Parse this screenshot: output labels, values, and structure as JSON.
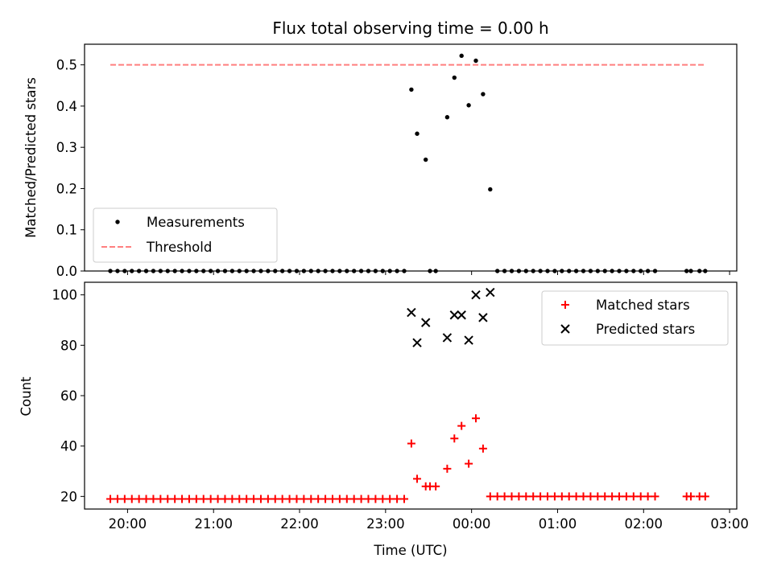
{
  "figure": {
    "title": "Flux total observing time = 0.00 h",
    "xlabel": "Time (UTC)",
    "x_tick_labels": [
      "20:00",
      "21:00",
      "22:00",
      "23:00",
      "00:00",
      "01:00",
      "02:00",
      "03:00"
    ]
  },
  "chart_data": [
    {
      "type": "scatter",
      "panel": "top",
      "ylabel": "Matched/Predicted stars",
      "xlim": [
        "19:30",
        "03:05"
      ],
      "ylim": [
        0,
        0.55
      ],
      "y_ticks": [
        0.0,
        0.1,
        0.2,
        0.3,
        0.4,
        0.5
      ],
      "y_tick_labels": [
        "0.0",
        "0.1",
        "0.2",
        "0.3",
        "0.4",
        "0.5"
      ],
      "grid": false,
      "legend_position": "lower left",
      "series": [
        {
          "name": "Measurements",
          "kind": "scatter",
          "marker": "dot",
          "color": "#000000",
          "points": [
            {
              "x": "19:48",
              "y": 0
            },
            {
              "x": "19:53",
              "y": 0
            },
            {
              "x": "19:58",
              "y": 0
            },
            {
              "x": "20:03",
              "y": 0
            },
            {
              "x": "20:08",
              "y": 0
            },
            {
              "x": "20:13",
              "y": 0
            },
            {
              "x": "20:18",
              "y": 0
            },
            {
              "x": "20:23",
              "y": 0
            },
            {
              "x": "20:28",
              "y": 0
            },
            {
              "x": "20:33",
              "y": 0
            },
            {
              "x": "20:38",
              "y": 0
            },
            {
              "x": "20:43",
              "y": 0
            },
            {
              "x": "20:48",
              "y": 0
            },
            {
              "x": "20:53",
              "y": 0
            },
            {
              "x": "20:58",
              "y": 0
            },
            {
              "x": "21:03",
              "y": 0
            },
            {
              "x": "21:08",
              "y": 0
            },
            {
              "x": "21:13",
              "y": 0
            },
            {
              "x": "21:18",
              "y": 0
            },
            {
              "x": "21:23",
              "y": 0
            },
            {
              "x": "21:28",
              "y": 0
            },
            {
              "x": "21:33",
              "y": 0
            },
            {
              "x": "21:38",
              "y": 0
            },
            {
              "x": "21:43",
              "y": 0
            },
            {
              "x": "21:48",
              "y": 0
            },
            {
              "x": "21:53",
              "y": 0
            },
            {
              "x": "21:58",
              "y": 0
            },
            {
              "x": "22:03",
              "y": 0
            },
            {
              "x": "22:08",
              "y": 0
            },
            {
              "x": "22:13",
              "y": 0
            },
            {
              "x": "22:18",
              "y": 0
            },
            {
              "x": "22:23",
              "y": 0
            },
            {
              "x": "22:28",
              "y": 0
            },
            {
              "x": "22:33",
              "y": 0
            },
            {
              "x": "22:38",
              "y": 0
            },
            {
              "x": "22:43",
              "y": 0
            },
            {
              "x": "22:48",
              "y": 0
            },
            {
              "x": "22:53",
              "y": 0
            },
            {
              "x": "22:58",
              "y": 0
            },
            {
              "x": "23:03",
              "y": 0
            },
            {
              "x": "23:08",
              "y": 0
            },
            {
              "x": "23:13",
              "y": 0
            },
            {
              "x": "23:18",
              "y": 0.44
            },
            {
              "x": "23:22",
              "y": 0.333
            },
            {
              "x": "23:28",
              "y": 0.27
            },
            {
              "x": "23:31",
              "y": 0
            },
            {
              "x": "23:35",
              "y": 0
            },
            {
              "x": "23:43",
              "y": 0.373
            },
            {
              "x": "23:48",
              "y": 0.469
            },
            {
              "x": "23:53",
              "y": 0.522
            },
            {
              "x": "23:58",
              "y": 0.402
            },
            {
              "x": "00:03",
              "y": 0.51
            },
            {
              "x": "00:08",
              "y": 0.429
            },
            {
              "x": "00:13",
              "y": 0.198
            },
            {
              "x": "00:18",
              "y": 0
            },
            {
              "x": "00:23",
              "y": 0
            },
            {
              "x": "00:28",
              "y": 0
            },
            {
              "x": "00:33",
              "y": 0
            },
            {
              "x": "00:38",
              "y": 0
            },
            {
              "x": "00:43",
              "y": 0
            },
            {
              "x": "00:48",
              "y": 0
            },
            {
              "x": "00:53",
              "y": 0
            },
            {
              "x": "00:58",
              "y": 0
            },
            {
              "x": "01:03",
              "y": 0
            },
            {
              "x": "01:08",
              "y": 0
            },
            {
              "x": "01:13",
              "y": 0
            },
            {
              "x": "01:18",
              "y": 0
            },
            {
              "x": "01:23",
              "y": 0
            },
            {
              "x": "01:28",
              "y": 0
            },
            {
              "x": "01:33",
              "y": 0
            },
            {
              "x": "01:38",
              "y": 0
            },
            {
              "x": "01:43",
              "y": 0
            },
            {
              "x": "01:48",
              "y": 0
            },
            {
              "x": "01:53",
              "y": 0
            },
            {
              "x": "01:58",
              "y": 0
            },
            {
              "x": "02:03",
              "y": 0
            },
            {
              "x": "02:08",
              "y": 0
            },
            {
              "x": "02:30",
              "y": 0
            },
            {
              "x": "02:33",
              "y": 0
            },
            {
              "x": "02:39",
              "y": 0
            },
            {
              "x": "02:43",
              "y": 0
            }
          ]
        },
        {
          "name": "Threshold",
          "kind": "line",
          "style": "dashed",
          "color": "#ff7f7f",
          "points": [
            {
              "x": "19:48",
              "y": 0.5
            },
            {
              "x": "02:43",
              "y": 0.5
            }
          ]
        }
      ]
    },
    {
      "type": "scatter",
      "panel": "bottom",
      "ylabel": "Count",
      "xlim": [
        "19:30",
        "03:05"
      ],
      "ylim": [
        15,
        105
      ],
      "y_ticks": [
        20,
        40,
        60,
        80,
        100
      ],
      "y_tick_labels": [
        "20",
        "40",
        "60",
        "80",
        "100"
      ],
      "grid": false,
      "legend_position": "upper right",
      "series": [
        {
          "name": "Matched stars",
          "kind": "scatter",
          "marker": "plus",
          "color": "#ff0000",
          "points": [
            {
              "x": "19:48",
              "y": 19
            },
            {
              "x": "19:53",
              "y": 19
            },
            {
              "x": "19:58",
              "y": 19
            },
            {
              "x": "20:03",
              "y": 19
            },
            {
              "x": "20:08",
              "y": 19
            },
            {
              "x": "20:13",
              "y": 19
            },
            {
              "x": "20:18",
              "y": 19
            },
            {
              "x": "20:23",
              "y": 19
            },
            {
              "x": "20:28",
              "y": 19
            },
            {
              "x": "20:33",
              "y": 19
            },
            {
              "x": "20:38",
              "y": 19
            },
            {
              "x": "20:43",
              "y": 19
            },
            {
              "x": "20:48",
              "y": 19
            },
            {
              "x": "20:53",
              "y": 19
            },
            {
              "x": "20:58",
              "y": 19
            },
            {
              "x": "21:03",
              "y": 19
            },
            {
              "x": "21:08",
              "y": 19
            },
            {
              "x": "21:13",
              "y": 19
            },
            {
              "x": "21:18",
              "y": 19
            },
            {
              "x": "21:23",
              "y": 19
            },
            {
              "x": "21:28",
              "y": 19
            },
            {
              "x": "21:33",
              "y": 19
            },
            {
              "x": "21:38",
              "y": 19
            },
            {
              "x": "21:43",
              "y": 19
            },
            {
              "x": "21:48",
              "y": 19
            },
            {
              "x": "21:53",
              "y": 19
            },
            {
              "x": "21:58",
              "y": 19
            },
            {
              "x": "22:03",
              "y": 19
            },
            {
              "x": "22:08",
              "y": 19
            },
            {
              "x": "22:13",
              "y": 19
            },
            {
              "x": "22:18",
              "y": 19
            },
            {
              "x": "22:23",
              "y": 19
            },
            {
              "x": "22:28",
              "y": 19
            },
            {
              "x": "22:33",
              "y": 19
            },
            {
              "x": "22:38",
              "y": 19
            },
            {
              "x": "22:43",
              "y": 19
            },
            {
              "x": "22:48",
              "y": 19
            },
            {
              "x": "22:53",
              "y": 19
            },
            {
              "x": "22:58",
              "y": 19
            },
            {
              "x": "23:03",
              "y": 19
            },
            {
              "x": "23:08",
              "y": 19
            },
            {
              "x": "23:13",
              "y": 19
            },
            {
              "x": "23:18",
              "y": 41
            },
            {
              "x": "23:22",
              "y": 27
            },
            {
              "x": "23:28",
              "y": 24
            },
            {
              "x": "23:31",
              "y": 24
            },
            {
              "x": "23:35",
              "y": 24
            },
            {
              "x": "23:43",
              "y": 31
            },
            {
              "x": "23:48",
              "y": 43
            },
            {
              "x": "23:53",
              "y": 48
            },
            {
              "x": "23:58",
              "y": 33
            },
            {
              "x": "00:03",
              "y": 51
            },
            {
              "x": "00:08",
              "y": 39
            },
            {
              "x": "00:13",
              "y": 20
            },
            {
              "x": "00:18",
              "y": 20
            },
            {
              "x": "00:23",
              "y": 20
            },
            {
              "x": "00:28",
              "y": 20
            },
            {
              "x": "00:33",
              "y": 20
            },
            {
              "x": "00:38",
              "y": 20
            },
            {
              "x": "00:43",
              "y": 20
            },
            {
              "x": "00:48",
              "y": 20
            },
            {
              "x": "00:53",
              "y": 20
            },
            {
              "x": "00:58",
              "y": 20
            },
            {
              "x": "01:03",
              "y": 20
            },
            {
              "x": "01:08",
              "y": 20
            },
            {
              "x": "01:13",
              "y": 20
            },
            {
              "x": "01:18",
              "y": 20
            },
            {
              "x": "01:23",
              "y": 20
            },
            {
              "x": "01:28",
              "y": 20
            },
            {
              "x": "01:33",
              "y": 20
            },
            {
              "x": "01:38",
              "y": 20
            },
            {
              "x": "01:43",
              "y": 20
            },
            {
              "x": "01:48",
              "y": 20
            },
            {
              "x": "01:53",
              "y": 20
            },
            {
              "x": "01:58",
              "y": 20
            },
            {
              "x": "02:03",
              "y": 20
            },
            {
              "x": "02:08",
              "y": 20
            },
            {
              "x": "02:30",
              "y": 20
            },
            {
              "x": "02:33",
              "y": 20
            },
            {
              "x": "02:39",
              "y": 20
            },
            {
              "x": "02:43",
              "y": 20
            }
          ]
        },
        {
          "name": "Predicted stars",
          "kind": "scatter",
          "marker": "x",
          "color": "#000000",
          "points": [
            {
              "x": "23:18",
              "y": 93
            },
            {
              "x": "23:22",
              "y": 81
            },
            {
              "x": "23:28",
              "y": 89
            },
            {
              "x": "23:43",
              "y": 83
            },
            {
              "x": "23:48",
              "y": 92
            },
            {
              "x": "23:53",
              "y": 92
            },
            {
              "x": "23:58",
              "y": 82
            },
            {
              "x": "00:03",
              "y": 100
            },
            {
              "x": "00:08",
              "y": 91
            },
            {
              "x": "00:13",
              "y": 101
            }
          ]
        }
      ]
    }
  ]
}
